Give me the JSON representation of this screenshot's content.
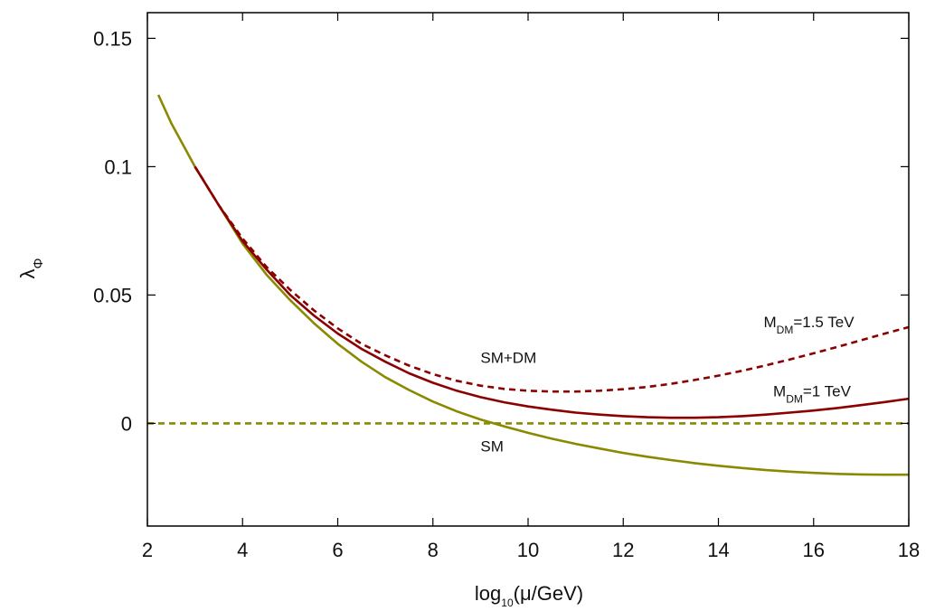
{
  "chart_data": {
    "type": "line",
    "title": "",
    "xlabel": {
      "base": "log",
      "sub": "10",
      "rest": "(μ/GeV)"
    },
    "ylabel": {
      "base": "λ",
      "sub": "Φ"
    },
    "xlim": [
      2,
      18
    ],
    "ylim": [
      -0.04,
      0.16
    ],
    "xticks": [
      2,
      4,
      6,
      8,
      10,
      12,
      14,
      16,
      18
    ],
    "yticks": [
      {
        "value": 0,
        "label": "0"
      },
      {
        "value": 0.05,
        "label": "0.05"
      },
      {
        "value": 0.1,
        "label": "0.1"
      },
      {
        "value": 0.15,
        "label": "0.15"
      }
    ],
    "grid": false,
    "legend": "none",
    "series": [
      {
        "key": "sm",
        "color": "#8a8a00",
        "dash": "solid",
        "x": [
          2.23,
          2.5,
          3.0,
          3.5,
          4.0,
          4.5,
          5.0,
          5.5,
          6.0,
          6.5,
          7.0,
          7.5,
          8.0,
          8.5,
          9.0,
          9.5,
          10.0,
          10.5,
          11.0,
          11.5,
          12.0,
          12.5,
          13.0,
          13.5,
          14.0,
          14.5,
          15.0,
          15.5,
          16.0,
          16.5,
          17.0,
          17.5,
          18.0
        ],
        "y": [
          0.128,
          0.117,
          0.1,
          0.085,
          0.07,
          0.058,
          0.048,
          0.039,
          0.031,
          0.024,
          0.018,
          0.013,
          0.0085,
          0.0047,
          0.0015,
          -0.0012,
          -0.0037,
          -0.006,
          -0.008,
          -0.0098,
          -0.0115,
          -0.013,
          -0.0143,
          -0.0155,
          -0.0165,
          -0.0174,
          -0.0182,
          -0.0188,
          -0.0193,
          -0.0197,
          -0.0199,
          -0.02,
          -0.02
        ]
      },
      {
        "key": "sm-zero",
        "color": "#8a8a00",
        "dash": "dashed",
        "x": [
          2,
          18
        ],
        "y": [
          0,
          0
        ]
      },
      {
        "key": "dm-1tev",
        "color": "#8b0000",
        "dash": "solid",
        "x": [
          3.0,
          3.5,
          4.0,
          4.5,
          5.0,
          5.5,
          6.0,
          6.5,
          7.0,
          7.5,
          8.0,
          8.5,
          9.0,
          9.5,
          10.0,
          10.5,
          11.0,
          11.5,
          12.0,
          12.5,
          13.0,
          13.5,
          14.0,
          14.5,
          15.0,
          15.5,
          16.0,
          16.5,
          17.0,
          17.5,
          18.0
        ],
        "y": [
          0.1,
          0.085,
          0.071,
          0.06,
          0.05,
          0.042,
          0.035,
          0.029,
          0.024,
          0.0195,
          0.0158,
          0.0127,
          0.0102,
          0.0082,
          0.0066,
          0.0053,
          0.0042,
          0.0034,
          0.0028,
          0.0024,
          0.0022,
          0.0022,
          0.0024,
          0.0028,
          0.0034,
          0.0042,
          0.005,
          0.006,
          0.0071,
          0.0083,
          0.0096
        ]
      },
      {
        "key": "dm-1.5tev",
        "color": "#8b0000",
        "dash": "dashed",
        "x": [
          3.0,
          3.5,
          4.0,
          4.5,
          5.0,
          5.5,
          6.0,
          6.5,
          7.0,
          7.5,
          8.0,
          8.5,
          9.0,
          9.5,
          10.0,
          10.5,
          11.0,
          11.5,
          12.0,
          12.5,
          13.0,
          13.5,
          14.0,
          14.5,
          15.0,
          15.5,
          16.0,
          16.5,
          17.0,
          17.5,
          18.0
        ],
        "y": [
          0.1,
          0.085,
          0.072,
          0.061,
          0.052,
          0.044,
          0.037,
          0.031,
          0.0265,
          0.0225,
          0.0192,
          0.0166,
          0.0147,
          0.0134,
          0.0127,
          0.0124,
          0.0124,
          0.0127,
          0.0133,
          0.0142,
          0.0154,
          0.0169,
          0.0186,
          0.0205,
          0.0226,
          0.0249,
          0.0273,
          0.0298,
          0.0324,
          0.035,
          0.0375
        ]
      }
    ],
    "annotations": [
      {
        "key": "sm-dm",
        "text": "SM+DM",
        "x": 9.0,
        "y": 0.0235
      },
      {
        "key": "sm",
        "text": "SM",
        "x": 9.0,
        "y": -0.011
      },
      {
        "key": "m15",
        "base": "M",
        "sub": "DM",
        "rest": "=1.5 TeV",
        "x": 14.95,
        "y": 0.0375
      },
      {
        "key": "m1",
        "base": "M",
        "sub": "DM",
        "rest": "=1 TeV",
        "x": 15.15,
        "y": 0.0105
      }
    ]
  }
}
